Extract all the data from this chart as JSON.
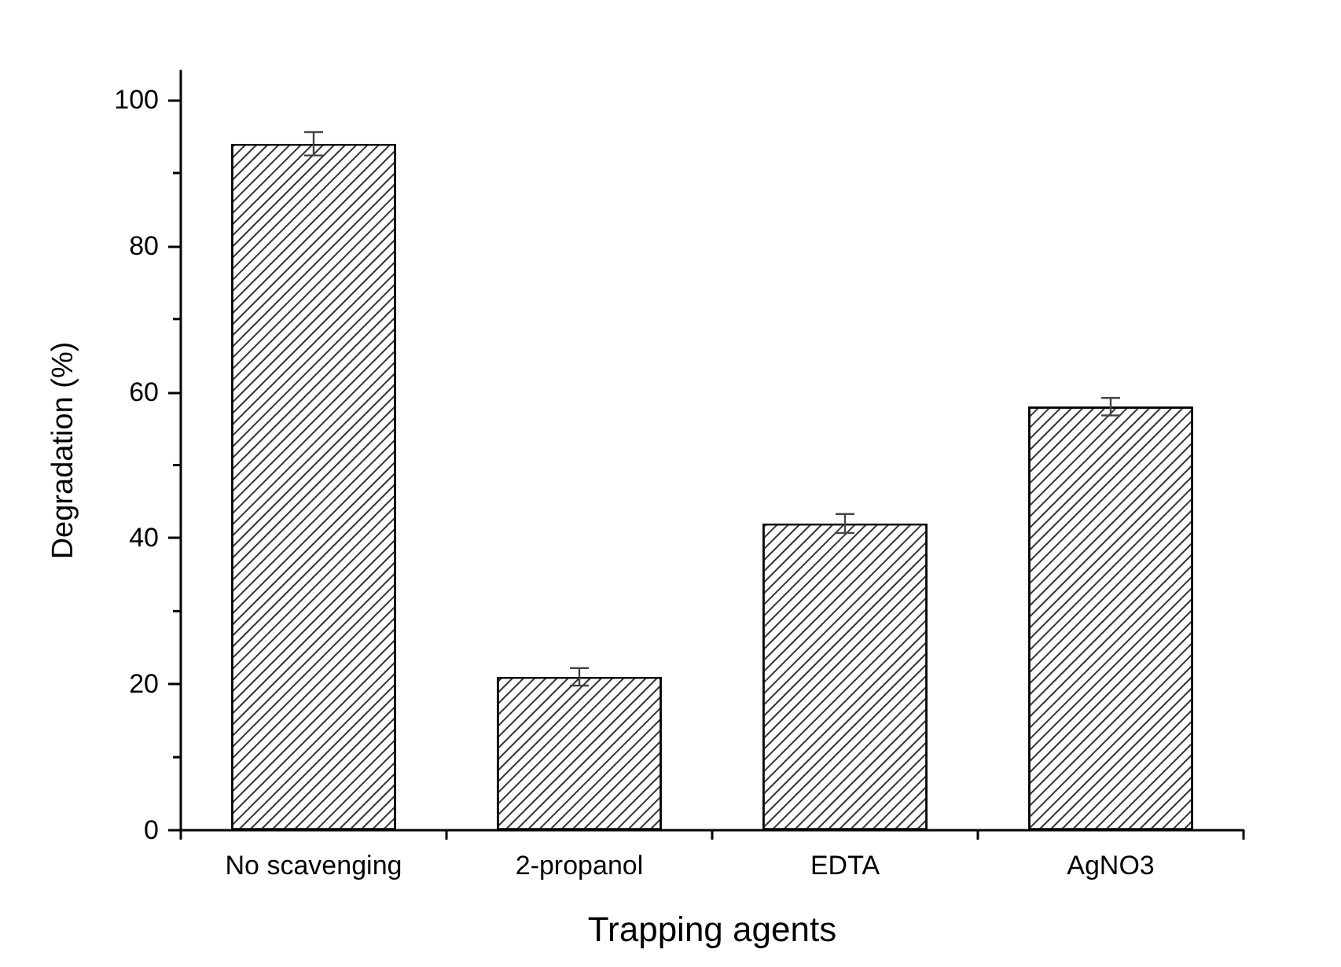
{
  "chart_data": {
    "type": "bar",
    "xlabel": "Trapping agents",
    "ylabel": "Degradation (%)",
    "categories": [
      "No scavenging",
      "2-propanol",
      "EDTA",
      "AgNO3"
    ],
    "values": [
      94,
      21,
      42,
      58
    ],
    "errors": [
      1.6,
      1.2,
      1.3,
      1.2
    ],
    "color": "#ffffff",
    "ylim": [
      0,
      104
    ],
    "yticks": [
      0,
      20,
      40,
      60,
      80,
      100
    ],
    "grid": false
  }
}
